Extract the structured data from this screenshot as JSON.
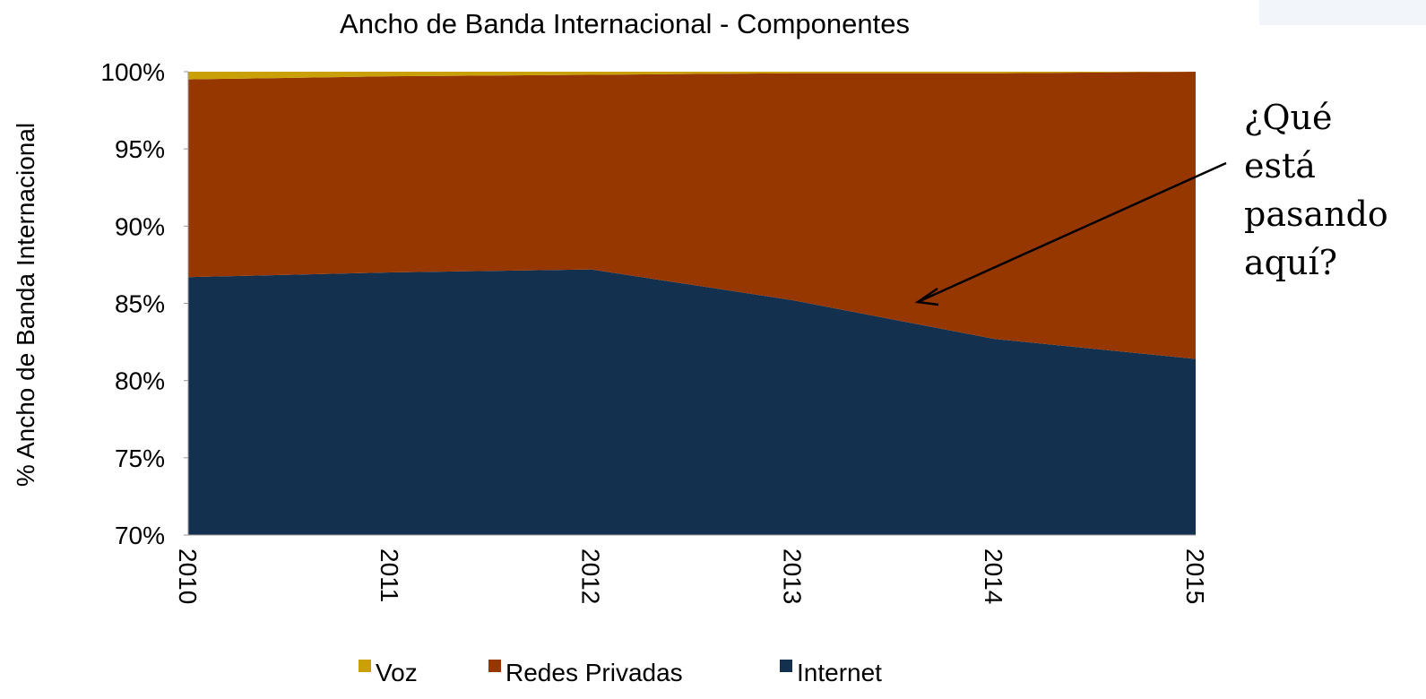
{
  "chart_data": {
    "type": "area",
    "title": "Ancho de Banda Internacional - Componentes",
    "y_label": "% Ancho de Banda Internacional",
    "annotation": [
      "¿Qué",
      "está",
      "pasando",
      "aquí?"
    ],
    "categories": [
      "2010",
      "2011",
      "2012",
      "2013",
      "2014",
      "2015"
    ],
    "stacked": true,
    "series": [
      {
        "name": "Voz",
        "color": "#c9a008",
        "values": [
          0.5,
          0.3,
          0.2,
          0.1,
          0.1,
          0.0
        ]
      },
      {
        "name": "Redes Privadas",
        "color": "#963700",
        "values": [
          12.8,
          12.7,
          12.6,
          14.7,
          17.2,
          18.6
        ]
      },
      {
        "name": "Internet",
        "color": "#14304f",
        "values": [
          86.7,
          87.0,
          87.2,
          85.2,
          82.7,
          81.4
        ]
      }
    ],
    "ylim": [
      70,
      100
    ],
    "yticks": [
      {
        "value": 70,
        "label": "70%"
      },
      {
        "value": 75,
        "label": "75%"
      },
      {
        "value": 80,
        "label": "80%"
      },
      {
        "value": 85,
        "label": "85%"
      },
      {
        "value": 90,
        "label": "90%"
      },
      {
        "value": 95,
        "label": "95%"
      },
      {
        "value": 100,
        "label": "100%"
      }
    ]
  }
}
